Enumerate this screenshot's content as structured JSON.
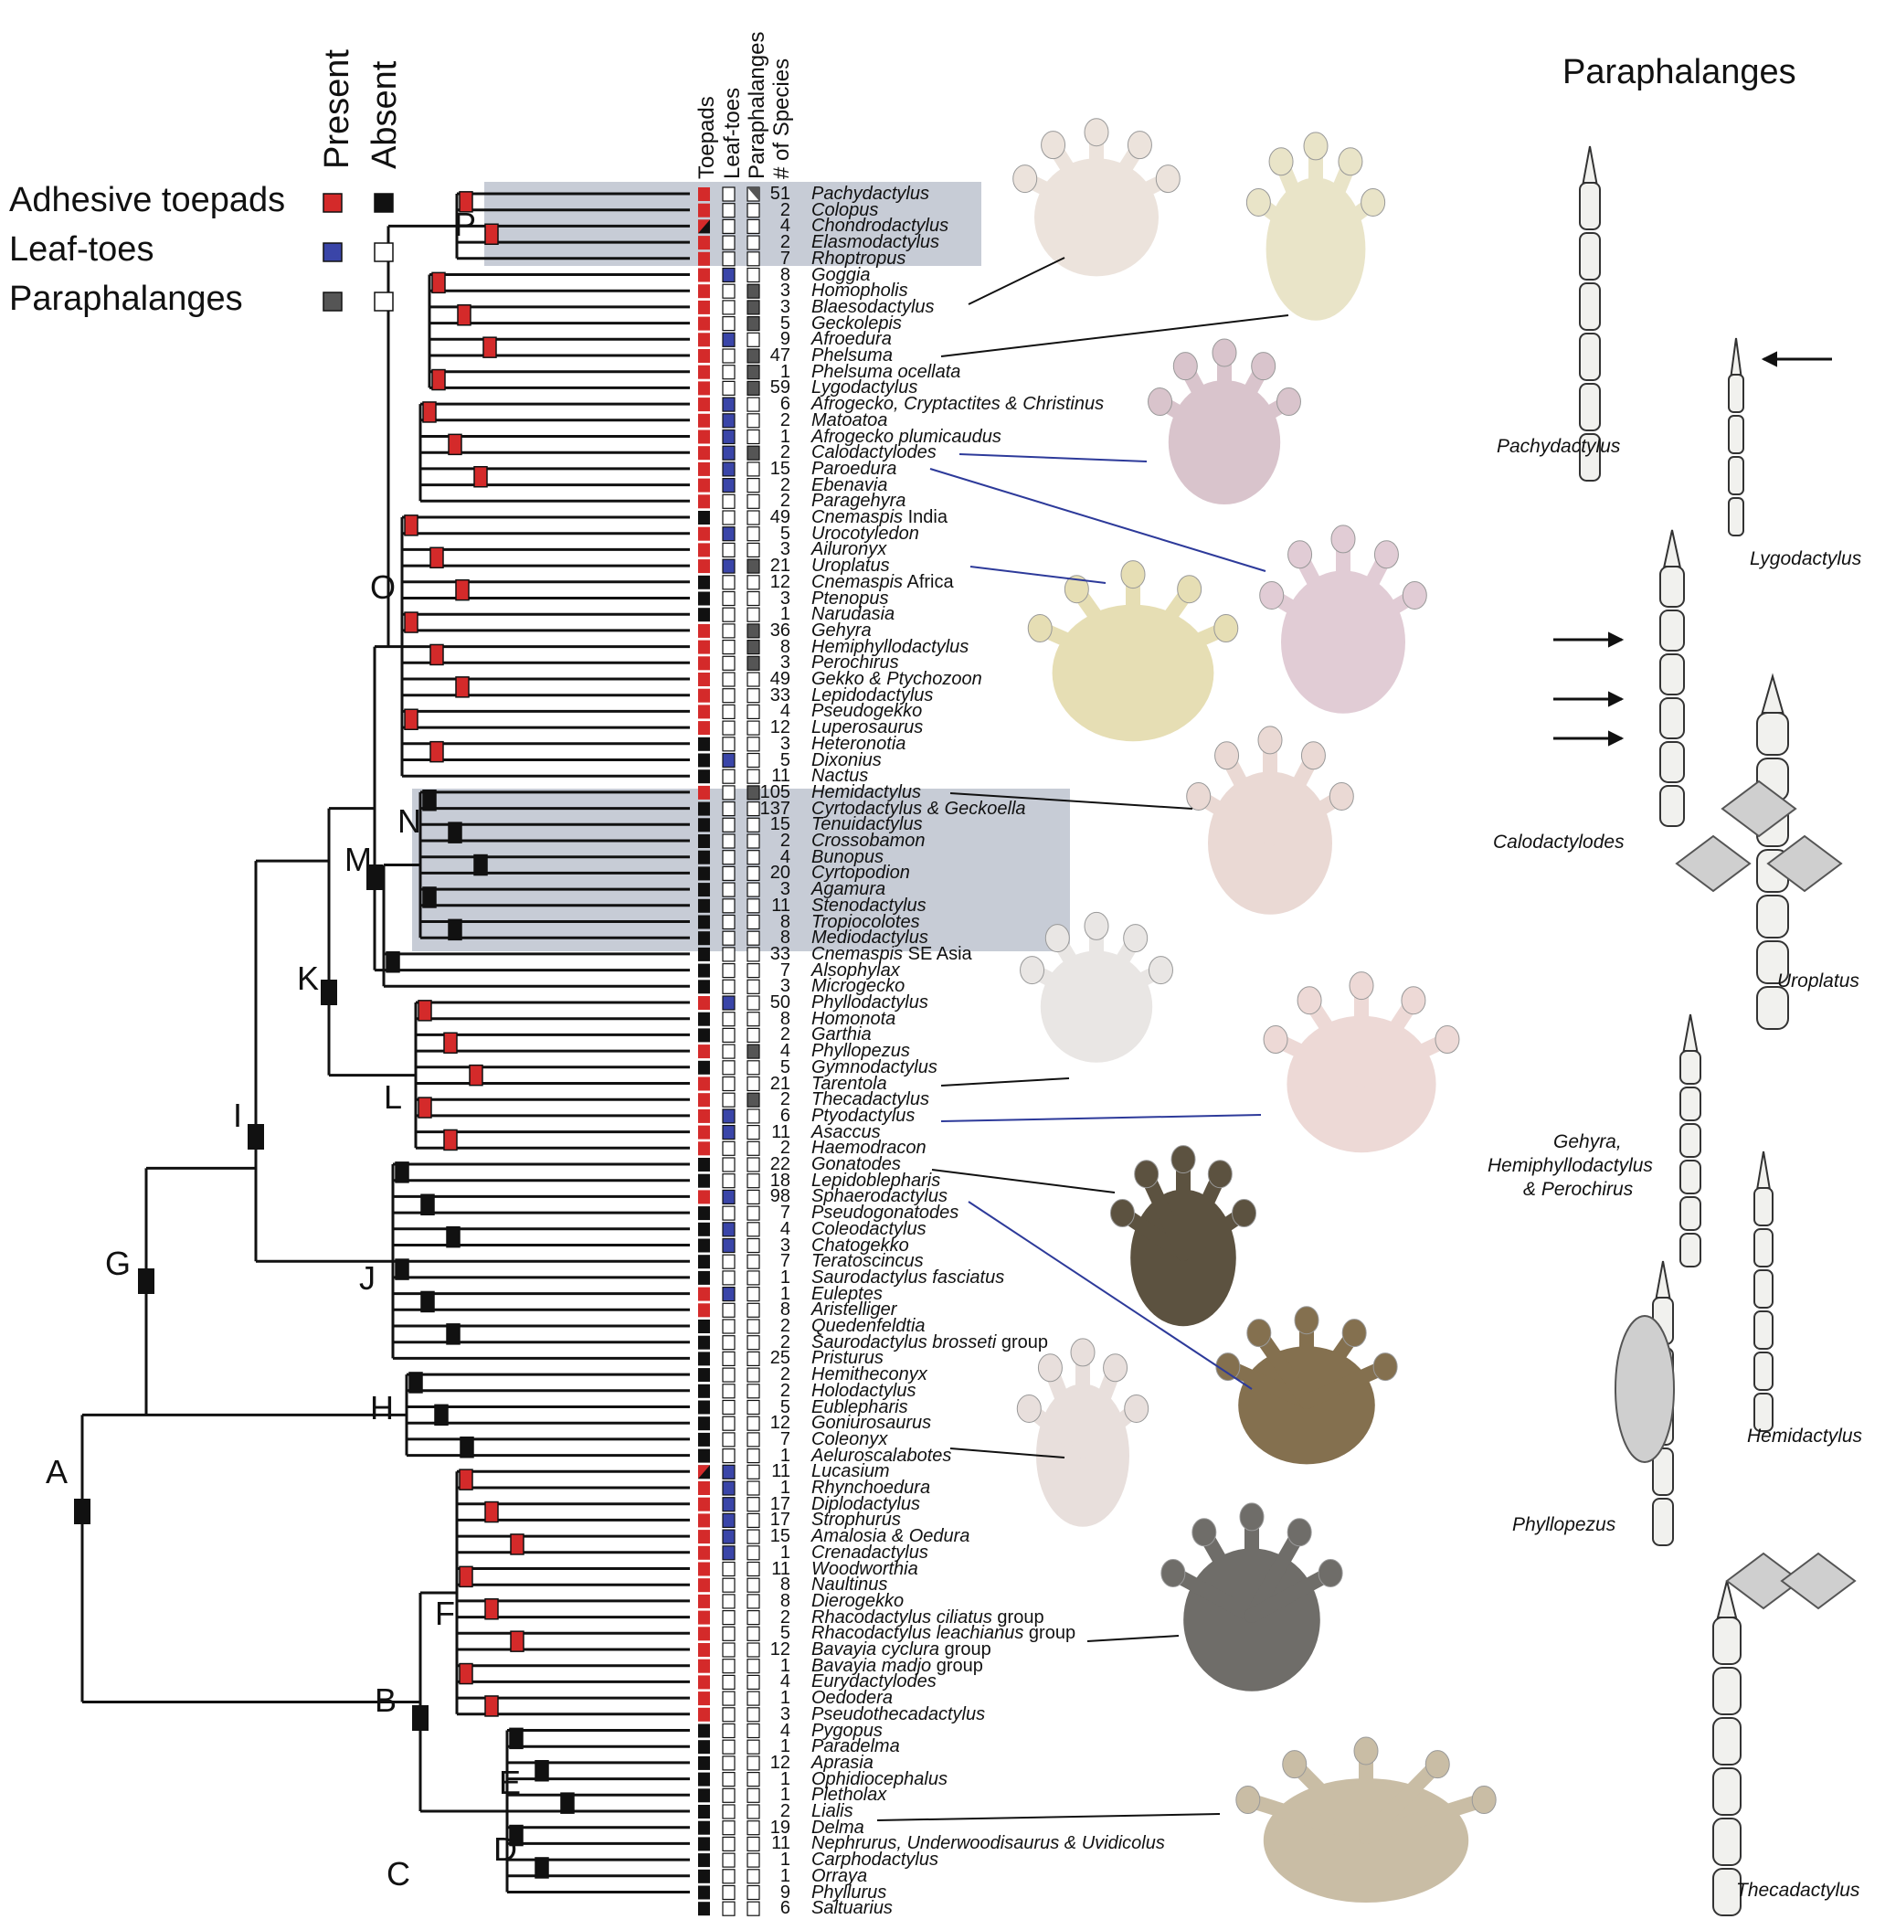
{
  "legend": {
    "present": "Present",
    "absent": "Absent",
    "rows": [
      {
        "label": "Adhesive toepads",
        "present_color": "#d42a2a",
        "absent_color": "#111111"
      },
      {
        "label": "Leaf-toes",
        "present_color": "#3a45a8",
        "absent_color": "#ffffff"
      },
      {
        "label": "Paraphalanges",
        "present_color": "#555555",
        "absent_color": "#ffffff"
      }
    ]
  },
  "columns": [
    "Toepads",
    "Leaf-toes",
    "Paraphalanges",
    "# of Species"
  ],
  "nodes": [
    "A",
    "B",
    "C",
    "D",
    "E",
    "F",
    "G",
    "H",
    "I",
    "J",
    "K",
    "L",
    "M",
    "N",
    "O",
    "P"
  ],
  "taxa": [
    {
      "n": "51",
      "name": "Pachydactylus",
      "t": "R",
      "l": 0,
      "p": 2
    },
    {
      "n": "2",
      "name": "Colopus",
      "t": "R",
      "l": 0,
      "p": 0
    },
    {
      "n": "4",
      "name": "Chondrodactylus",
      "t": "M",
      "l": 0,
      "p": 0
    },
    {
      "n": "2",
      "name": "Elasmodactylus",
      "t": "R",
      "l": 0,
      "p": 0
    },
    {
      "n": "7",
      "name": "Rhoptropus",
      "t": "R",
      "l": 0,
      "p": 0
    },
    {
      "n": "8",
      "name": "Goggia",
      "t": "R",
      "l": 1,
      "p": 0
    },
    {
      "n": "3",
      "name": "Homopholis",
      "t": "R",
      "l": 0,
      "p": 1
    },
    {
      "n": "3",
      "name": "Blaesodactylus",
      "t": "R",
      "l": 0,
      "p": 1
    },
    {
      "n": "5",
      "name": "Geckolepis",
      "t": "R",
      "l": 0,
      "p": 1
    },
    {
      "n": "9",
      "name": "Afroedura",
      "t": "R",
      "l": 1,
      "p": 0
    },
    {
      "n": "47",
      "name": "Phelsuma",
      "t": "R",
      "l": 0,
      "p": 1
    },
    {
      "n": "1",
      "name": "Phelsuma ocellata",
      "t": "R",
      "l": 0,
      "p": 1
    },
    {
      "n": "59",
      "name": "Lygodactylus",
      "t": "R",
      "l": 0,
      "p": 1
    },
    {
      "n": "6",
      "name": "Afrogecko, Cryptactites & Christinus",
      "t": "R",
      "l": 1,
      "p": 0
    },
    {
      "n": "2",
      "name": "Matoatoa",
      "t": "R",
      "l": 1,
      "p": 0
    },
    {
      "n": "1",
      "name": "Afrogecko plumicaudus",
      "t": "R",
      "l": 1,
      "p": 0
    },
    {
      "n": "2",
      "name": "Calodactylodes",
      "t": "R",
      "l": 1,
      "p": 1
    },
    {
      "n": "15",
      "name": "Paroedura",
      "t": "R",
      "l": 1,
      "p": 0
    },
    {
      "n": "2",
      "name": "Ebenavia",
      "t": "R",
      "l": 1,
      "p": 0
    },
    {
      "n": "2",
      "name": "Paragehyra",
      "t": "R",
      "l": 0,
      "p": 0
    },
    {
      "n": "49",
      "name": "Cnemaspis|India",
      "t": "B",
      "l": 0,
      "p": 0
    },
    {
      "n": "5",
      "name": "Urocotyledon",
      "t": "R",
      "l": 1,
      "p": 0
    },
    {
      "n": "3",
      "name": "Ailuronyx",
      "t": "R",
      "l": 0,
      "p": 0
    },
    {
      "n": "21",
      "name": "Uroplatus",
      "t": "R",
      "l": 1,
      "p": 1
    },
    {
      "n": "12",
      "name": "Cnemaspis|Africa",
      "t": "B",
      "l": 0,
      "p": 0
    },
    {
      "n": "3",
      "name": "Ptenopus",
      "t": "B",
      "l": 0,
      "p": 0
    },
    {
      "n": "1",
      "name": "Narudasia",
      "t": "B",
      "l": 0,
      "p": 0
    },
    {
      "n": "36",
      "name": "Gehyra",
      "t": "R",
      "l": 0,
      "p": 1
    },
    {
      "n": "8",
      "name": "Hemiphyllodactylus",
      "t": "R",
      "l": 0,
      "p": 1
    },
    {
      "n": "3",
      "name": "Perochirus",
      "t": "R",
      "l": 0,
      "p": 1
    },
    {
      "n": "49",
      "name": "Gekko & Ptychozoon",
      "t": "R",
      "l": 0,
      "p": 0
    },
    {
      "n": "33",
      "name": "Lepidodactylus",
      "t": "R",
      "l": 0,
      "p": 0
    },
    {
      "n": "4",
      "name": "Pseudogekko",
      "t": "R",
      "l": 0,
      "p": 0
    },
    {
      "n": "12",
      "name": "Luperosaurus",
      "t": "R",
      "l": 0,
      "p": 0
    },
    {
      "n": "3",
      "name": "Heteronotia",
      "t": "B",
      "l": 0,
      "p": 0
    },
    {
      "n": "5",
      "name": "Dixonius",
      "t": "B",
      "l": 1,
      "p": 0
    },
    {
      "n": "11",
      "name": "Nactus",
      "t": "B",
      "l": 0,
      "p": 0
    },
    {
      "n": "105",
      "name": "Hemidactylus",
      "t": "R",
      "l": 0,
      "p": 1
    },
    {
      "n": "137",
      "name": "Cyrtodactylus & Geckoella",
      "t": "B",
      "l": 0,
      "p": 0
    },
    {
      "n": "15",
      "name": "Tenuidactylus",
      "t": "B",
      "l": 0,
      "p": 0
    },
    {
      "n": "2",
      "name": "Crossobamon",
      "t": "B",
      "l": 0,
      "p": 0
    },
    {
      "n": "4",
      "name": "Bunopus",
      "t": "B",
      "l": 0,
      "p": 0
    },
    {
      "n": "20",
      "name": "Cyrtopodion",
      "t": "B",
      "l": 0,
      "p": 0
    },
    {
      "n": "3",
      "name": "Agamura",
      "t": "B",
      "l": 0,
      "p": 0
    },
    {
      "n": "11",
      "name": "Stenodactylus",
      "t": "B",
      "l": 0,
      "p": 0
    },
    {
      "n": "8",
      "name": "Tropiocolotes",
      "t": "B",
      "l": 0,
      "p": 0
    },
    {
      "n": "8",
      "name": "Mediodactylus",
      "t": "B",
      "l": 0,
      "p": 0
    },
    {
      "n": "33",
      "name": "Cnemaspis|SE Asia",
      "t": "B",
      "l": 0,
      "p": 0
    },
    {
      "n": "7",
      "name": "Alsophylax",
      "t": "B",
      "l": 0,
      "p": 0
    },
    {
      "n": "3",
      "name": "Microgecko",
      "t": "B",
      "l": 0,
      "p": 0
    },
    {
      "n": "50",
      "name": "Phyllodactylus",
      "t": "R",
      "l": 1,
      "p": 0
    },
    {
      "n": "8",
      "name": "Homonota",
      "t": "B",
      "l": 0,
      "p": 0
    },
    {
      "n": "2",
      "name": "Garthia",
      "t": "B",
      "l": 0,
      "p": 0
    },
    {
      "n": "4",
      "name": "Phyllopezus",
      "t": "R",
      "l": 0,
      "p": 1
    },
    {
      "n": "5",
      "name": "Gymnodactylus",
      "t": "B",
      "l": 0,
      "p": 0
    },
    {
      "n": "21",
      "name": "Tarentola",
      "t": "R",
      "l": 0,
      "p": 0
    },
    {
      "n": "2",
      "name": "Thecadactylus",
      "t": "R",
      "l": 0,
      "p": 1
    },
    {
      "n": "6",
      "name": "Ptyodactylus",
      "t": "R",
      "l": 1,
      "p": 0
    },
    {
      "n": "11",
      "name": "Asaccus",
      "t": "R",
      "l": 1,
      "p": 0
    },
    {
      "n": "2",
      "name": "Haemodracon",
      "t": "R",
      "l": 0,
      "p": 0
    },
    {
      "n": "22",
      "name": "Gonatodes",
      "t": "B",
      "l": 0,
      "p": 0
    },
    {
      "n": "18",
      "name": "Lepidoblepharis",
      "t": "B",
      "l": 0,
      "p": 0
    },
    {
      "n": "98",
      "name": "Sphaerodactylus",
      "t": "R",
      "l": 1,
      "p": 0
    },
    {
      "n": "7",
      "name": "Pseudogonatodes",
      "t": "B",
      "l": 0,
      "p": 0
    },
    {
      "n": "4",
      "name": "Coleodactylus",
      "t": "B",
      "l": 1,
      "p": 0
    },
    {
      "n": "3",
      "name": "Chatogekko",
      "t": "B",
      "l": 1,
      "p": 0
    },
    {
      "n": "7",
      "name": "Teratoscincus",
      "t": "B",
      "l": 0,
      "p": 0
    },
    {
      "n": "1",
      "name": "Saurodactylus fasciatus",
      "t": "B",
      "l": 0,
      "p": 0
    },
    {
      "n": "1",
      "name": "Euleptes",
      "t": "R",
      "l": 1,
      "p": 0
    },
    {
      "n": "8",
      "name": "Aristelliger",
      "t": "R",
      "l": 0,
      "p": 0
    },
    {
      "n": "2",
      "name": "Quedenfeldtia",
      "t": "B",
      "l": 0,
      "p": 0
    },
    {
      "n": "2",
      "name": "Saurodactylus brosseti| group",
      "t": "B",
      "l": 0,
      "p": 0
    },
    {
      "n": "25",
      "name": "Pristurus",
      "t": "B",
      "l": 0,
      "p": 0
    },
    {
      "n": "2",
      "name": "Hemitheconyx",
      "t": "B",
      "l": 0,
      "p": 0
    },
    {
      "n": "2",
      "name": "Holodactylus",
      "t": "B",
      "l": 0,
      "p": 0
    },
    {
      "n": "5",
      "name": "Eublepharis",
      "t": "B",
      "l": 0,
      "p": 0
    },
    {
      "n": "12",
      "name": "Goniurosaurus",
      "t": "B",
      "l": 0,
      "p": 0
    },
    {
      "n": "7",
      "name": "Coleonyx",
      "t": "B",
      "l": 0,
      "p": 0
    },
    {
      "n": "1",
      "name": "Aeluroscalabotes",
      "t": "B",
      "l": 0,
      "p": 0
    },
    {
      "n": "11",
      "name": "Lucasium",
      "t": "M",
      "l": 1,
      "p": 0
    },
    {
      "n": "1",
      "name": "Rhynchoedura",
      "t": "R",
      "l": 1,
      "p": 0
    },
    {
      "n": "17",
      "name": "Diplodactylus",
      "t": "R",
      "l": 1,
      "p": 0
    },
    {
      "n": "17",
      "name": "Strophurus",
      "t": "R",
      "l": 1,
      "p": 0
    },
    {
      "n": "15",
      "name": "Amalosia & Oedura",
      "t": "R",
      "l": 1,
      "p": 0
    },
    {
      "n": "1",
      "name": "Crenadactylus",
      "t": "R",
      "l": 1,
      "p": 0
    },
    {
      "n": "11",
      "name": "Woodworthia",
      "t": "R",
      "l": 0,
      "p": 0
    },
    {
      "n": "8",
      "name": "Naultinus",
      "t": "R",
      "l": 0,
      "p": 0
    },
    {
      "n": "8",
      "name": "Dierogekko",
      "t": "R",
      "l": 0,
      "p": 0
    },
    {
      "n": "2",
      "name": "Rhacodactylus ciliatus| group",
      "t": "R",
      "l": 0,
      "p": 0
    },
    {
      "n": "5",
      "name": "Rhacodactylus leachianus| group",
      "t": "R",
      "l": 0,
      "p": 0
    },
    {
      "n": "12",
      "name": "Bavayia cyclura| group",
      "t": "R",
      "l": 0,
      "p": 0
    },
    {
      "n": "1",
      "name": "Bavayia madjo| group",
      "t": "R",
      "l": 0,
      "p": 0
    },
    {
      "n": "4",
      "name": "Eurydactylodes",
      "t": "R",
      "l": 0,
      "p": 0
    },
    {
      "n": "1",
      "name": "Oedodera",
      "t": "R",
      "l": 0,
      "p": 0
    },
    {
      "n": "3",
      "name": "Pseudothecadactylus",
      "t": "R",
      "l": 0,
      "p": 0
    },
    {
      "n": "4",
      "name": "Pygopus",
      "t": "B",
      "l": 0,
      "p": 0
    },
    {
      "n": "1",
      "name": "Paradelma",
      "t": "B",
      "l": 0,
      "p": 0
    },
    {
      "n": "12",
      "name": "Aprasia",
      "t": "B",
      "l": 0,
      "p": 0
    },
    {
      "n": "1",
      "name": "Ophidiocephalus",
      "t": "B",
      "l": 0,
      "p": 0
    },
    {
      "n": "1",
      "name": "Pletholax",
      "t": "B",
      "l": 0,
      "p": 0
    },
    {
      "n": "2",
      "name": "Lialis",
      "t": "B",
      "l": 0,
      "p": 0
    },
    {
      "n": "19",
      "name": "Delma",
      "t": "B",
      "l": 0,
      "p": 0
    },
    {
      "n": "11",
      "name": "Nephrurus, Underwoodisaurus & Uvidicolus",
      "t": "B",
      "l": 0,
      "p": 0
    },
    {
      "n": "1",
      "name": "Carphodactylus",
      "t": "B",
      "l": 0,
      "p": 0
    },
    {
      "n": "1",
      "name": "Orraya",
      "t": "B",
      "l": 0,
      "p": 0
    },
    {
      "n": "9",
      "name": "Phyllurus",
      "t": "B",
      "l": 0,
      "p": 0
    },
    {
      "n": "6",
      "name": "Saltuarius",
      "t": "B",
      "l": 0,
      "p": 0
    }
  ],
  "paraphalanges": {
    "title": "Paraphalanges",
    "captions": [
      "Pachydactylus",
      "Lygodactylus",
      "Calodactylodes",
      "Uroplatus",
      "Gehyra,",
      "Hemiphyllodactylus",
      "& Perochirus",
      "Hemidactylus",
      "Phyllopezus",
      "Thecadactylus"
    ]
  },
  "colors": {
    "red": "#d42a2a",
    "black": "#111111",
    "blue": "#3a45a8",
    "gray": "#555555",
    "highlight": "#c7ccd6",
    "blue_line": "#2d3a9a"
  }
}
